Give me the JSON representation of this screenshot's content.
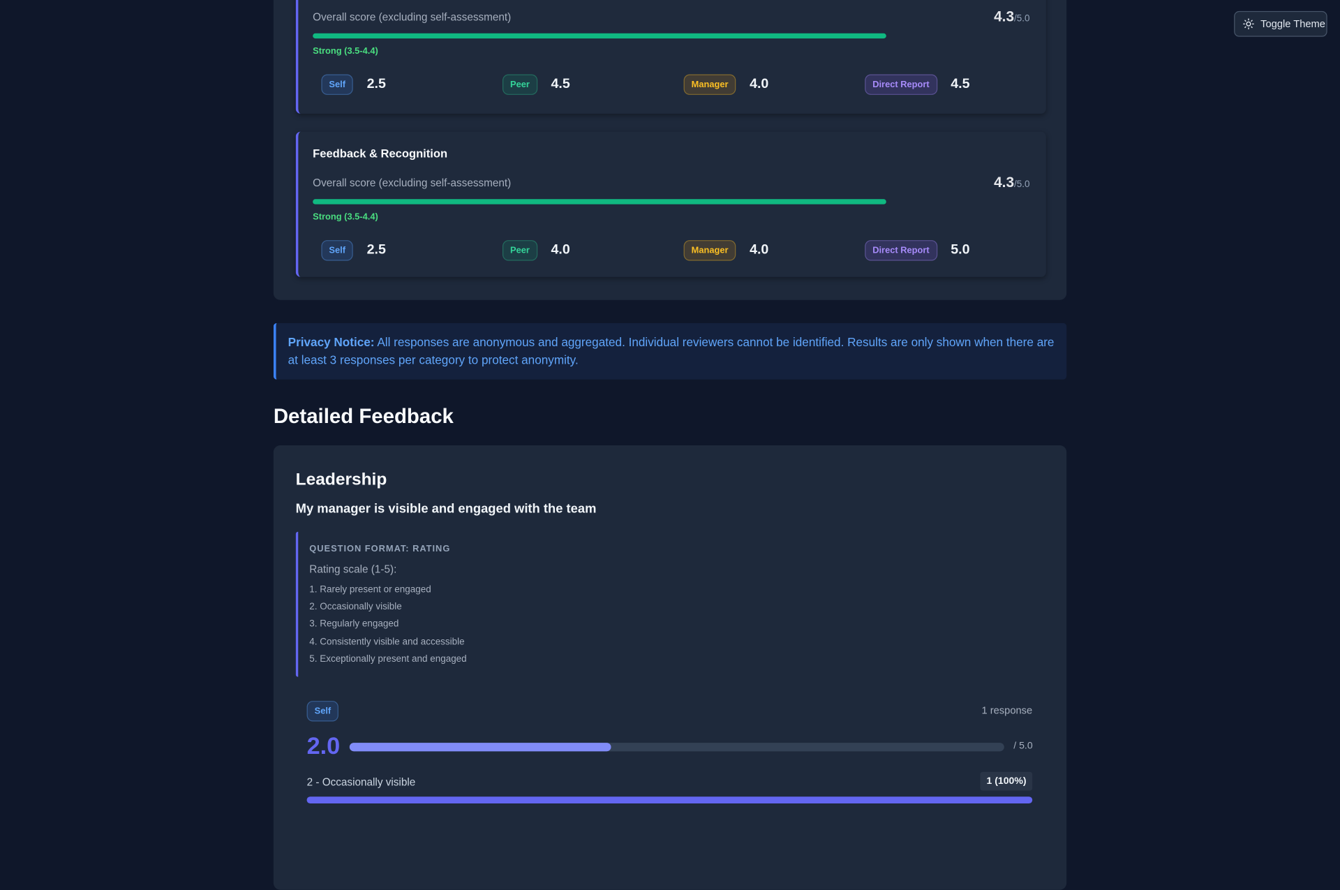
{
  "toggle": "Toggle Theme",
  "categories": [
    {
      "overall_label": "Overall score (excluding self-assessment)",
      "score": "4.3",
      "out_of": "/5.0",
      "band": "Strong (3.5-4.4)",
      "ratings": [
        {
          "source": "Self",
          "score": "2.5"
        },
        {
          "source": "Peer",
          "score": "4.5"
        },
        {
          "source": "Manager",
          "score": "4.0"
        },
        {
          "source": "Direct Report",
          "score": "4.5"
        }
      ]
    },
    {
      "title": "Feedback & Recognition",
      "overall_label": "Overall score (excluding self-assessment)",
      "score": "4.3",
      "out_of": "/5.0",
      "band": "Strong (3.5-4.4)",
      "ratings": [
        {
          "source": "Self",
          "score": "2.5"
        },
        {
          "source": "Peer",
          "score": "4.0"
        },
        {
          "source": "Manager",
          "score": "4.0"
        },
        {
          "source": "Direct Report",
          "score": "5.0"
        }
      ]
    }
  ],
  "privacy": {
    "label": "Privacy Notice:",
    "text": "All responses are anonymous and aggregated. Individual reviewers cannot be identified. Results are only shown when there are at least 3 responses per category to protect anonymity."
  },
  "detailed": {
    "heading": "Detailed Feedback",
    "section": "Leadership",
    "question": "My manager is visible and engaged with the team",
    "format_label": "QUESTION FORMAT: RATING",
    "scale_label": "Rating scale (1-5):",
    "scale": [
      "1. Rarely present or engaged",
      "2. Occasionally visible",
      "3. Regularly engaged",
      "4. Consistently visible and accessible",
      "5. Exceptionally present and engaged"
    ],
    "groups": [
      {
        "source": "Self",
        "responses": "1 response",
        "score": "2.0",
        "out_of": "/ 5.0",
        "distribution": [
          {
            "label": "2 - Occasionally visible",
            "count": "1 (100%)"
          }
        ]
      }
    ]
  }
}
